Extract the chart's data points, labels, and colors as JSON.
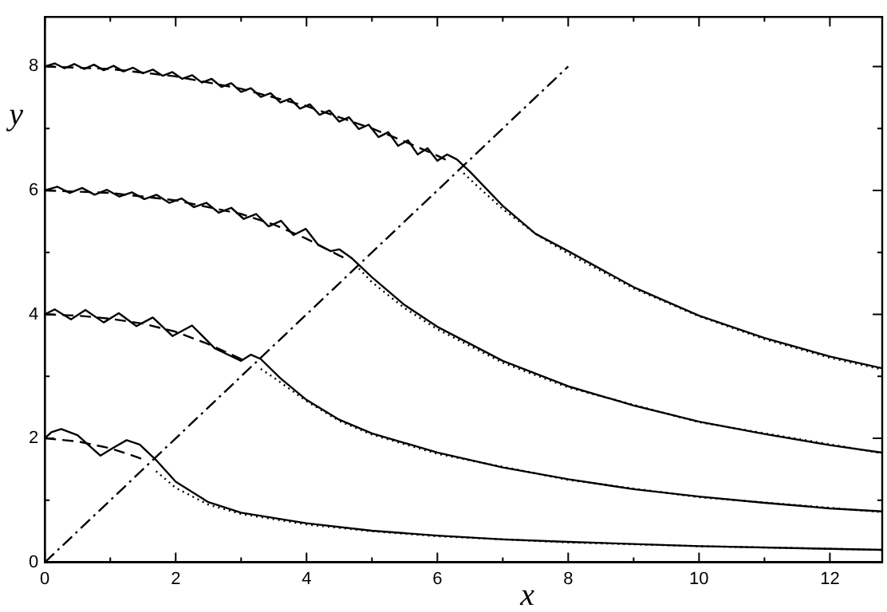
{
  "chart_data": {
    "type": "line",
    "xlabel": "x",
    "ylabel": "y",
    "xlim": [
      0,
      12.8
    ],
    "ylim": [
      0,
      8.8
    ],
    "xticks": [
      0,
      {
        "value": 1,
        "label": null
      },
      2,
      {
        "value": 3,
        "label": null
      },
      4,
      {
        "value": 5,
        "label": null
      },
      6,
      {
        "value": 7,
        "label": null
      },
      8,
      {
        "value": 9,
        "label": null
      },
      10,
      {
        "value": 11,
        "label": null
      },
      12
    ],
    "yticks": [
      0,
      {
        "value": 1,
        "label": null
      },
      2,
      {
        "value": 3,
        "label": null
      },
      4,
      {
        "value": 5,
        "label": null
      },
      6,
      {
        "value": 7,
        "label": null
      },
      8
    ],
    "grid": false,
    "legend": false,
    "marker": "none",
    "series": [
      {
        "color": "#000000",
        "line_style": "solid",
        "x": [
          0,
          0.15,
          0.3,
          0.45,
          0.6,
          0.75,
          0.9,
          1.05,
          1.2,
          1.35,
          1.5,
          1.65,
          1.8,
          1.95,
          2.1,
          2.25,
          2.4,
          2.55,
          2.7,
          2.85,
          3.0,
          3.15,
          3.3,
          3.45,
          3.6,
          3.75,
          3.9,
          4.05,
          4.2,
          4.35,
          4.5,
          4.65,
          4.8,
          4.95,
          5.1,
          5.25,
          5.4,
          5.55,
          5.7,
          5.85,
          6.0,
          6.15,
          6.3,
          6.5,
          7,
          7.5,
          8,
          9,
          10,
          11,
          12,
          12.8
        ],
        "values": [
          8.0,
          8.05,
          7.97,
          8.04,
          7.96,
          8.03,
          7.94,
          8.01,
          7.92,
          7.98,
          7.89,
          7.95,
          7.85,
          7.91,
          7.8,
          7.86,
          7.74,
          7.8,
          7.67,
          7.73,
          7.59,
          7.65,
          7.51,
          7.57,
          7.42,
          7.48,
          7.32,
          7.39,
          7.22,
          7.29,
          7.11,
          7.18,
          6.99,
          7.06,
          6.86,
          6.94,
          6.72,
          6.81,
          6.58,
          6.68,
          6.48,
          6.58,
          6.5,
          6.3,
          5.75,
          5.3,
          5.02,
          4.44,
          3.98,
          3.62,
          3.32,
          3.13
        ]
      },
      {
        "color": "#000000",
        "line_style": "dashed",
        "x": [
          0,
          1,
          2,
          3,
          4,
          5,
          5.5,
          6,
          6.2
        ],
        "values": [
          8,
          7.96,
          7.84,
          7.64,
          7.36,
          7.0,
          6.79,
          6.56,
          6.46
        ]
      },
      {
        "color": "#000000",
        "line_style": "dotted",
        "x": [
          6.4,
          6.6,
          7,
          7.5,
          8,
          9,
          10,
          11,
          12,
          12.8
        ],
        "values": [
          6.28,
          6.08,
          5.7,
          5.3,
          4.98,
          4.42,
          3.97,
          3.6,
          3.3,
          3.11
        ]
      },
      {
        "color": "#000000",
        "line_style": "solid",
        "x": [
          0,
          0.19,
          0.38,
          0.57,
          0.76,
          0.95,
          1.14,
          1.33,
          1.52,
          1.71,
          1.9,
          2.09,
          2.28,
          2.47,
          2.66,
          2.85,
          3.04,
          3.23,
          3.42,
          3.61,
          3.8,
          3.99,
          4.18,
          4.37,
          4.5,
          4.7,
          5.0,
          5.5,
          6,
          7,
          8,
          9,
          10,
          11,
          12,
          12.8
        ],
        "values": [
          6.0,
          6.06,
          5.96,
          6.04,
          5.93,
          6.01,
          5.9,
          5.97,
          5.86,
          5.93,
          5.8,
          5.87,
          5.73,
          5.8,
          5.64,
          5.72,
          5.54,
          5.62,
          5.42,
          5.51,
          5.28,
          5.38,
          5.12,
          5.02,
          5.05,
          4.9,
          4.6,
          4.15,
          3.8,
          3.25,
          2.84,
          2.53,
          2.27,
          2.07,
          1.89,
          1.77
        ]
      },
      {
        "color": "#000000",
        "line_style": "dashed",
        "x": [
          0,
          1,
          2,
          3,
          3.5,
          4,
          4.5,
          4.6
        ],
        "values": [
          6,
          5.96,
          5.84,
          5.62,
          5.45,
          5.22,
          4.95,
          4.9
        ]
      },
      {
        "color": "#000000",
        "line_style": "dotted",
        "x": [
          4.8,
          5,
          5.5,
          6,
          7,
          8,
          10,
          12.8
        ],
        "values": [
          4.74,
          4.52,
          4.1,
          3.76,
          3.22,
          2.82,
          2.26,
          1.76
        ]
      },
      {
        "color": "#000000",
        "line_style": "solid",
        "x": [
          0,
          0.15,
          0.4,
          0.62,
          0.9,
          1.13,
          1.4,
          1.65,
          1.95,
          2.25,
          2.6,
          3.0,
          3.15,
          3.3,
          3.6,
          4,
          4.5,
          5,
          6,
          7,
          8,
          9,
          10,
          11,
          12,
          12.8
        ],
        "values": [
          4.0,
          4.08,
          3.92,
          4.07,
          3.87,
          4.02,
          3.81,
          3.95,
          3.65,
          3.82,
          3.45,
          3.25,
          3.35,
          3.28,
          2.97,
          2.62,
          2.3,
          2.08,
          1.77,
          1.53,
          1.34,
          1.18,
          1.06,
          0.96,
          0.87,
          0.82
        ]
      },
      {
        "color": "#000000",
        "line_style": "dashed",
        "x": [
          0,
          0.5,
          1,
          1.5,
          2,
          2.5,
          3,
          3.1
        ],
        "values": [
          4,
          3.98,
          3.93,
          3.85,
          3.72,
          3.52,
          3.28,
          3.23
        ]
      },
      {
        "color": "#000000",
        "line_style": "dotted",
        "x": [
          3.3,
          3.5,
          4,
          4.5,
          5,
          6,
          8,
          10,
          12.8
        ],
        "values": [
          3.12,
          2.98,
          2.6,
          2.28,
          2.06,
          1.75,
          1.33,
          1.05,
          0.81
        ]
      },
      {
        "color": "#000000",
        "line_style": "solid",
        "x": [
          0,
          0.1,
          0.25,
          0.5,
          0.85,
          1.05,
          1.25,
          1.45,
          1.7,
          2,
          2.5,
          3,
          4,
          5,
          6,
          7,
          8,
          10,
          12.8
        ],
        "values": [
          2.0,
          2.1,
          2.15,
          2.05,
          1.72,
          1.85,
          1.97,
          1.9,
          1.65,
          1.3,
          0.97,
          0.8,
          0.63,
          0.51,
          0.43,
          0.37,
          0.33,
          0.26,
          0.2
        ]
      },
      {
        "color": "#000000",
        "line_style": "dashed",
        "x": [
          0,
          0.5,
          1,
          1.4,
          1.5
        ],
        "values": [
          2,
          1.95,
          1.84,
          1.7,
          1.66
        ]
      },
      {
        "color": "#000000",
        "line_style": "dotted",
        "x": [
          1.7,
          2,
          2.5,
          3,
          4,
          5,
          6,
          8,
          10,
          12.8
        ],
        "values": [
          1.47,
          1.2,
          0.93,
          0.78,
          0.61,
          0.5,
          0.42,
          0.32,
          0.26,
          0.2
        ]
      },
      {
        "color": "#000000",
        "line_style": "dashdot",
        "x": [
          0,
          8
        ],
        "values": [
          0,
          8
        ]
      }
    ]
  }
}
